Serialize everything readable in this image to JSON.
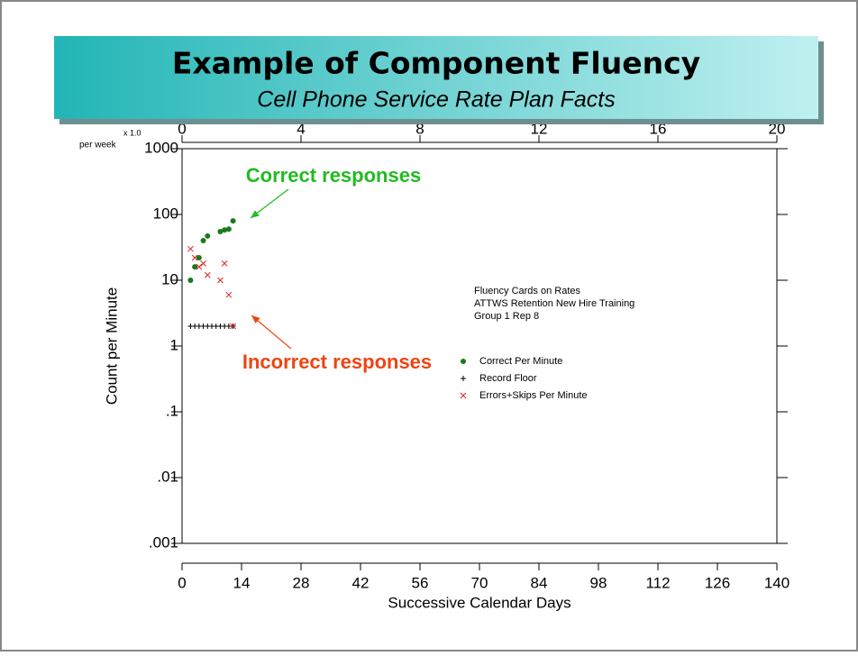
{
  "chart_data": {
    "type": "scatter",
    "title": "Example of Component Fluency",
    "subtitle": "Cell Phone Service Rate Plan Facts",
    "xlabel": "Successive Calendar Days",
    "ylabel": "Count per Minute",
    "top_axis_label": "per week",
    "top_axis_note": "x 1.0",
    "xlim": [
      0,
      140
    ],
    "xticks": [
      0,
      14,
      28,
      42,
      56,
      70,
      84,
      98,
      112,
      126,
      140
    ],
    "x2lim": [
      0,
      20
    ],
    "x2ticks": [
      0,
      4,
      8,
      12,
      16,
      20
    ],
    "ylim": [
      0.001,
      1000
    ],
    "log_y": true,
    "yticks": [
      1000,
      100,
      10,
      1,
      {
        "value": 0.1,
        "label": ".1"
      },
      {
        "value": 0.01,
        "label": ".01"
      },
      {
        "value": 0.001,
        "label": ".001"
      }
    ],
    "legend_title_lines": [
      "Fluency Cards on Rates",
      "ATTWS Retention New Hire Training",
      "Group 1  Rep 8"
    ],
    "annotations": [
      {
        "text": "Correct responses",
        "color": "#22bb22"
      },
      {
        "text": "Incorrect responses",
        "color": "#ee4411"
      }
    ],
    "series": [
      {
        "name": "Correct Per Minute",
        "color": "#1a7a1a",
        "marker": "dot",
        "x": [
          2,
          3,
          4,
          5,
          6,
          9,
          10,
          11,
          12
        ],
        "values": [
          10,
          16,
          22,
          40,
          47,
          55,
          58,
          60,
          80
        ]
      },
      {
        "name": "Record Floor",
        "color": "#000000",
        "marker": "plus",
        "x": [
          2,
          3,
          4,
          5,
          6,
          7,
          8,
          9,
          10,
          11,
          12
        ],
        "values": [
          2,
          2,
          2,
          2,
          2,
          2,
          2,
          2,
          2,
          2,
          2
        ]
      },
      {
        "name": "Errors+Skips Per Minute",
        "color": "#dd2222",
        "marker": "cross",
        "x": [
          2,
          3,
          4,
          5,
          6,
          9,
          10,
          11,
          12
        ],
        "values": [
          30,
          22,
          16,
          18,
          12,
          10,
          18,
          6,
          2
        ]
      }
    ]
  }
}
